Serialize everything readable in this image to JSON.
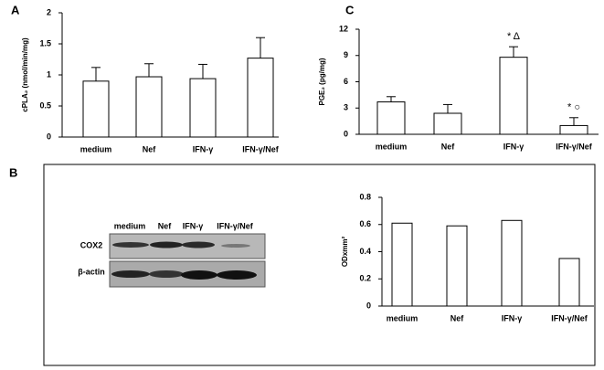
{
  "chart_data": [
    {
      "type": "bar",
      "label": "A",
      "ylabel": "cPLA₂ (nmol/min/mg)",
      "categories": [
        "medium",
        "Nef",
        "IFN-γ",
        "IFN-γ/Nef"
      ],
      "values": [
        0.9,
        0.97,
        0.94,
        1.27
      ],
      "errors": [
        0.22,
        0.21,
        0.23,
        0.33
      ],
      "color": "#ffffff",
      "ylim": [
        0,
        2
      ],
      "yticks": [
        0,
        0.5,
        1,
        1.5,
        2
      ]
    },
    {
      "type": "bar",
      "label": "C",
      "ylabel": "PGE₂ (pg/mg)",
      "categories": [
        "medium",
        "Nef",
        "IFN-γ",
        "IFN-γ/Nef"
      ],
      "values": [
        3.7,
        2.4,
        8.8,
        1.0
      ],
      "errors": [
        0.6,
        1.0,
        1.2,
        0.9
      ],
      "annotations": [
        "* Δ",
        "* ○"
      ],
      "color": "#ffffff",
      "ylim": [
        0,
        12
      ],
      "yticks": [
        0,
        3,
        6,
        9,
        12
      ]
    },
    {
      "type": "bar",
      "label": "B",
      "ylabel": "ODxmm²",
      "categories": [
        "medium",
        "Nef",
        "IFN-γ",
        "IFN-γ/Nef"
      ],
      "values": [
        0.61,
        0.59,
        0.63,
        0.35
      ],
      "color": "#ffffff",
      "ylim": [
        0,
        0.8
      ],
      "yticks": [
        0,
        0.2,
        0.4,
        0.6,
        0.8
      ]
    }
  ],
  "blot": {
    "lanes": [
      "medium",
      "Nef",
      "IFN-γ",
      "IFN-γ/Nef"
    ],
    "rows": [
      "COX2",
      "β-actin"
    ]
  }
}
